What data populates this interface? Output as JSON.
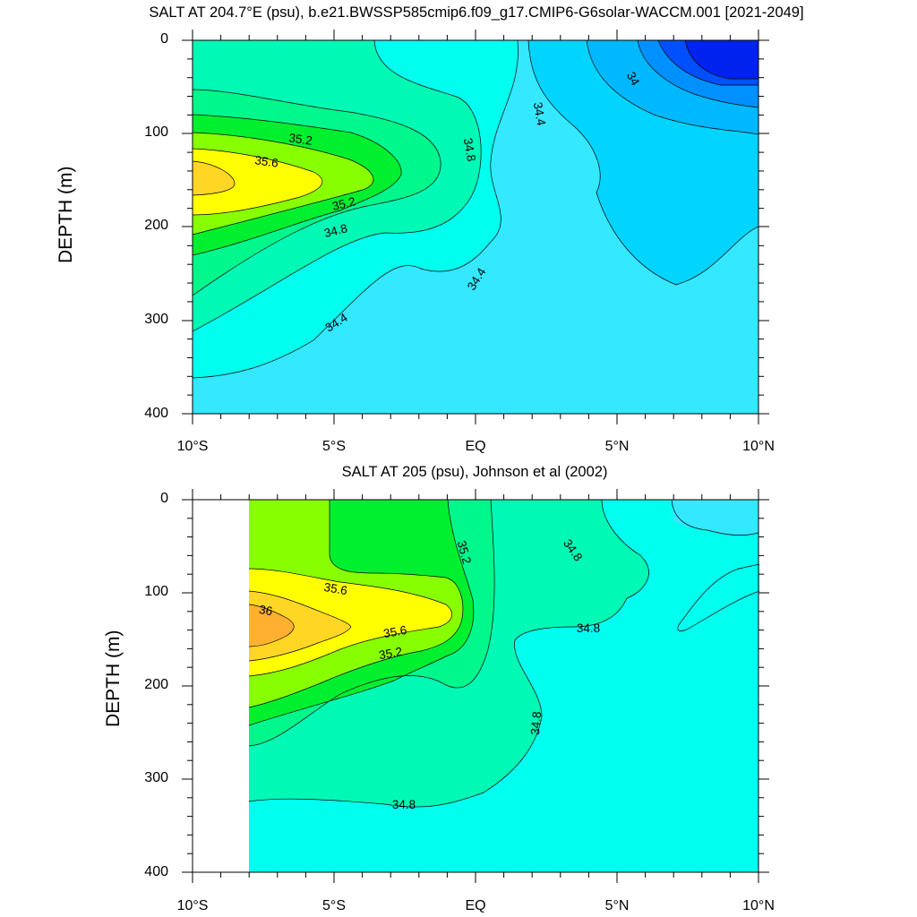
{
  "chart_data": [
    {
      "type": "contour",
      "title": "SALT AT 204.7°E (psu), b.e21.BWSSP585cmip6.f09_g17.CMIP6-G6solar-WACCM.001 [2021-2049]",
      "xlabel": "",
      "ylabel": "DEPTH (m)",
      "x_tick_labels": [
        "10°S",
        "5°S",
        "EQ",
        "5°N",
        "10°N"
      ],
      "y_tick_labels": [
        "0",
        "100",
        "200",
        "300",
        "400"
      ],
      "xlim": [
        -10,
        10
      ],
      "ylim": [
        400,
        0
      ],
      "contour_labels": [
        "35.2",
        "35.6",
        "35.2",
        "34.8",
        "34.4",
        "34.8",
        "34.4",
        "34.4",
        "34"
      ],
      "contour_levels": [
        33.4,
        33.6,
        33.8,
        34.0,
        34.2,
        34.4,
        34.6,
        34.8,
        35.0,
        35.2,
        35.4,
        35.6,
        35.8,
        36.0
      ],
      "colors": {
        "le_33_6": "#0022ee",
        "33_6_33_8": "#0050ff",
        "33_8_34_0": "#0090ff",
        "34_0_34_2": "#00b8ff",
        "34_2_34_4": "#00d4ff",
        "34_4_34_6": "#33e8ff",
        "34_6_34_8": "#00ffee",
        "34_8_35_0": "#00f9b5",
        "35_0_35_2": "#00f78c",
        "35_2_35_4": "#00f030",
        "35_4_35_6": "#88ff00",
        "35_6_35_8": "#ffff00",
        "35_8_36_0": "#ffd624"
      }
    },
    {
      "type": "contour",
      "title": "SALT AT 205 (psu), Johnson et al (2002)",
      "xlabel": "",
      "ylabel": "DEPTH (m)",
      "x_tick_labels": [
        "10°S",
        "5°S",
        "EQ",
        "5°N",
        "10°N"
      ],
      "y_tick_labels": [
        "0",
        "100",
        "200",
        "300",
        "400"
      ],
      "xlim": [
        -10,
        10
      ],
      "ylim": [
        400,
        0
      ],
      "contour_labels": [
        "35.2",
        "34.8",
        "35.6",
        "36",
        "35.6",
        "35.2",
        "34.8",
        "34.8",
        "34.8"
      ],
      "contour_levels": [
        34.4,
        34.6,
        34.8,
        35.0,
        35.2,
        35.4,
        35.6,
        35.8,
        36.0,
        36.2
      ],
      "colors": {
        "34_4_34_6": "#33e8ff",
        "34_6_34_8": "#00ffee",
        "34_8_35_0": "#00f9b5",
        "35_0_35_2": "#00f78c",
        "35_2_35_4": "#00f030",
        "35_4_35_6": "#88ff00",
        "35_6_35_8": "#ffff00",
        "35_8_36_0": "#ffd624",
        "36_0_36_2": "#ffb030"
      }
    }
  ]
}
